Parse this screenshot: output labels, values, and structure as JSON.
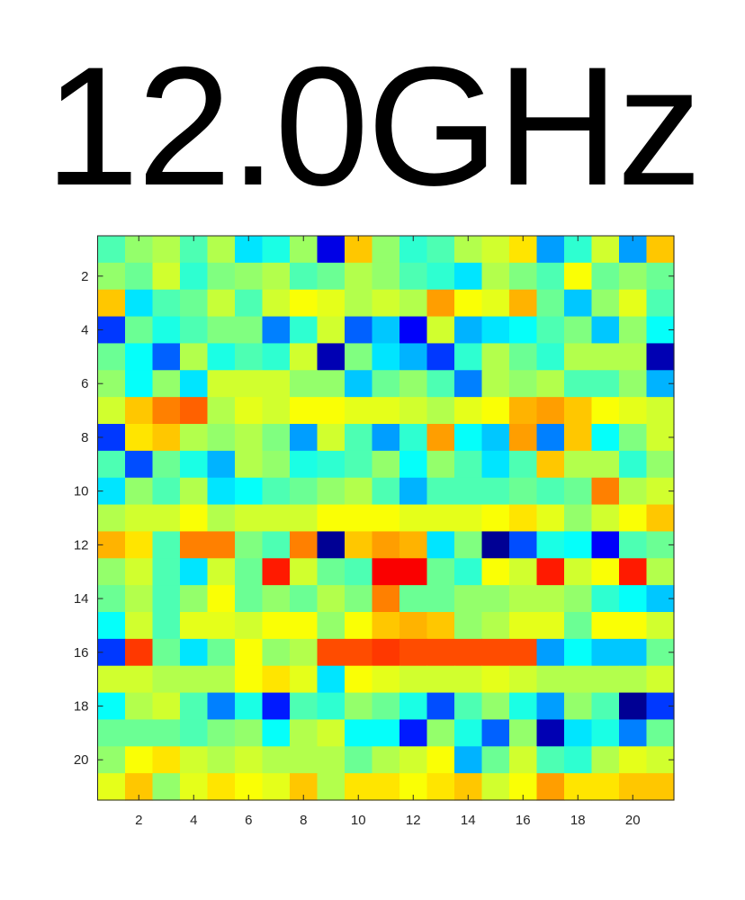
{
  "chart_data": {
    "type": "heatmap",
    "title": "12.0GHz",
    "xlabel": "",
    "ylabel": "",
    "colormap": "jet",
    "colorbar": false,
    "x_range": [
      1,
      21
    ],
    "y_range": [
      1,
      21
    ],
    "y_direction": "top-to-bottom",
    "x_ticks": [
      2,
      4,
      6,
      8,
      10,
      12,
      14,
      16,
      18,
      20
    ],
    "y_ticks": [
      2,
      4,
      6,
      8,
      10,
      12,
      14,
      16,
      18,
      20
    ],
    "value_range": [
      0,
      1
    ],
    "values": [
      [
        0.45,
        0.52,
        0.55,
        0.45,
        0.55,
        0.35,
        0.4,
        0.53,
        0.1,
        0.68,
        0.52,
        0.42,
        0.45,
        0.55,
        0.58,
        0.65,
        0.28,
        0.42,
        0.58,
        0.28,
        0.68
      ],
      [
        0.52,
        0.48,
        0.58,
        0.42,
        0.5,
        0.52,
        0.55,
        0.45,
        0.48,
        0.55,
        0.52,
        0.45,
        0.42,
        0.35,
        0.55,
        0.5,
        0.45,
        0.62,
        0.48,
        0.52,
        0.48
      ],
      [
        0.68,
        0.35,
        0.45,
        0.48,
        0.57,
        0.45,
        0.58,
        0.62,
        0.6,
        0.55,
        0.58,
        0.55,
        0.72,
        0.62,
        0.6,
        0.7,
        0.48,
        0.32,
        0.52,
        0.6,
        0.45
      ],
      [
        0.18,
        0.48,
        0.4,
        0.45,
        0.5,
        0.5,
        0.25,
        0.42,
        0.58,
        0.22,
        0.32,
        0.12,
        0.58,
        0.3,
        0.35,
        0.38,
        0.45,
        0.5,
        0.32,
        0.52,
        0.38
      ],
      [
        0.48,
        0.38,
        0.22,
        0.55,
        0.4,
        0.45,
        0.42,
        0.58,
        0.05,
        0.5,
        0.35,
        0.3,
        0.18,
        0.42,
        0.55,
        0.48,
        0.42,
        0.55,
        0.55,
        0.55,
        0.05
      ],
      [
        0.52,
        0.38,
        0.52,
        0.35,
        0.58,
        0.58,
        0.58,
        0.52,
        0.52,
        0.32,
        0.48,
        0.52,
        0.45,
        0.25,
        0.55,
        0.52,
        0.55,
        0.45,
        0.45,
        0.52,
        0.3
      ],
      [
        0.58,
        0.68,
        0.75,
        0.78,
        0.55,
        0.6,
        0.58,
        0.62,
        0.62,
        0.6,
        0.6,
        0.58,
        0.55,
        0.6,
        0.62,
        0.7,
        0.72,
        0.68,
        0.62,
        0.6,
        0.58
      ],
      [
        0.18,
        0.65,
        0.68,
        0.55,
        0.52,
        0.55,
        0.5,
        0.28,
        0.58,
        0.45,
        0.28,
        0.42,
        0.72,
        0.38,
        0.32,
        0.72,
        0.25,
        0.68,
        0.38,
        0.5,
        0.58
      ],
      [
        0.45,
        0.2,
        0.48,
        0.4,
        0.3,
        0.55,
        0.52,
        0.4,
        0.42,
        0.45,
        0.52,
        0.38,
        0.52,
        0.45,
        0.35,
        0.45,
        0.68,
        0.55,
        0.55,
        0.42,
        0.52
      ],
      [
        0.35,
        0.52,
        0.45,
        0.55,
        0.35,
        0.38,
        0.45,
        0.48,
        0.52,
        0.55,
        0.45,
        0.3,
        0.45,
        0.45,
        0.45,
        0.48,
        0.45,
        0.48,
        0.75,
        0.55,
        0.58
      ],
      [
        0.55,
        0.58,
        0.58,
        0.62,
        0.55,
        0.58,
        0.58,
        0.58,
        0.62,
        0.62,
        0.62,
        0.6,
        0.6,
        0.6,
        0.62,
        0.65,
        0.6,
        0.52,
        0.58,
        0.62,
        0.68
      ],
      [
        0.7,
        0.65,
        0.45,
        0.75,
        0.75,
        0.5,
        0.45,
        0.75,
        0.02,
        0.68,
        0.72,
        0.7,
        0.35,
        0.5,
        0.02,
        0.2,
        0.4,
        0.38,
        0.12,
        0.45,
        0.48
      ],
      [
        0.52,
        0.58,
        0.45,
        0.35,
        0.58,
        0.48,
        0.85,
        0.58,
        0.48,
        0.45,
        0.88,
        0.88,
        0.48,
        0.42,
        0.62,
        0.58,
        0.85,
        0.58,
        0.62,
        0.85,
        0.55
      ],
      [
        0.48,
        0.55,
        0.45,
        0.52,
        0.62,
        0.48,
        0.52,
        0.48,
        0.55,
        0.5,
        0.75,
        0.48,
        0.48,
        0.52,
        0.52,
        0.55,
        0.55,
        0.52,
        0.42,
        0.38,
        0.32
      ],
      [
        0.38,
        0.58,
        0.45,
        0.6,
        0.6,
        0.58,
        0.62,
        0.62,
        0.52,
        0.62,
        0.68,
        0.7,
        0.68,
        0.52,
        0.55,
        0.6,
        0.6,
        0.48,
        0.62,
        0.62,
        0.58
      ],
      [
        0.18,
        0.82,
        0.48,
        0.35,
        0.48,
        0.62,
        0.52,
        0.55,
        0.8,
        0.8,
        0.82,
        0.8,
        0.8,
        0.8,
        0.8,
        0.8,
        0.28,
        0.38,
        0.32,
        0.32,
        0.48
      ],
      [
        0.58,
        0.58,
        0.55,
        0.55,
        0.55,
        0.62,
        0.65,
        0.6,
        0.35,
        0.62,
        0.6,
        0.58,
        0.58,
        0.58,
        0.6,
        0.58,
        0.55,
        0.55,
        0.55,
        0.55,
        0.58
      ],
      [
        0.38,
        0.55,
        0.58,
        0.45,
        0.25,
        0.4,
        0.15,
        0.45,
        0.42,
        0.52,
        0.48,
        0.4,
        0.2,
        0.45,
        0.52,
        0.4,
        0.28,
        0.52,
        0.45,
        0.02,
        0.18
      ],
      [
        0.48,
        0.48,
        0.48,
        0.45,
        0.5,
        0.52,
        0.38,
        0.55,
        0.58,
        0.38,
        0.38,
        0.15,
        0.52,
        0.4,
        0.22,
        0.52,
        0.05,
        0.35,
        0.4,
        0.25,
        0.48
      ],
      [
        0.52,
        0.62,
        0.65,
        0.58,
        0.55,
        0.58,
        0.55,
        0.55,
        0.55,
        0.48,
        0.55,
        0.58,
        0.62,
        0.3,
        0.48,
        0.58,
        0.45,
        0.42,
        0.55,
        0.6,
        0.58
      ],
      [
        0.6,
        0.68,
        0.52,
        0.6,
        0.65,
        0.62,
        0.6,
        0.68,
        0.55,
        0.65,
        0.65,
        0.62,
        0.65,
        0.68,
        0.58,
        0.62,
        0.72,
        0.65,
        0.65,
        0.68,
        0.68
      ]
    ]
  }
}
